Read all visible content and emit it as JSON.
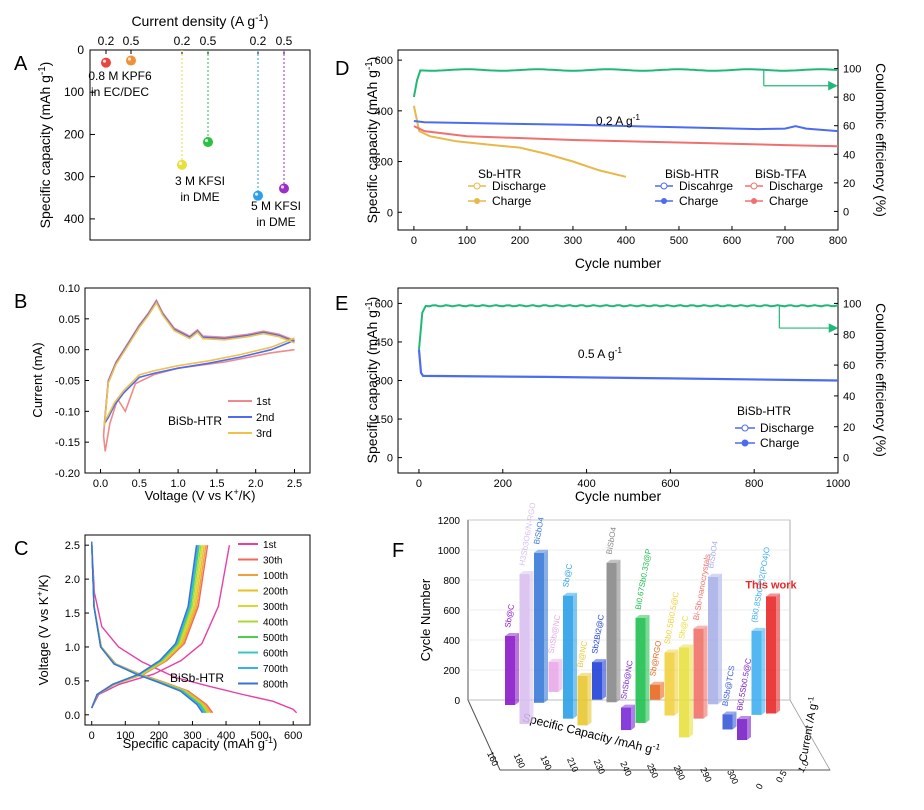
{
  "chart_data": [
    {
      "panel": "A",
      "type": "scatter",
      "top_axis_title": "Current density (A g$^{-1}$)",
      "top_axis_title_text": "Current density (A g",
      "top_axis_sup": "-1",
      "ylabel": "Specific capacity (mAh g",
      "ylabel_sup": "-1",
      "ylim": [
        0,
        450
      ],
      "yticks": [
        "0",
        "100",
        "200",
        "300",
        "400"
      ],
      "groups": [
        {
          "label_lines": [
            "0.8 M KPF6",
            "in EC/DEC"
          ],
          "points": [
            {
              "current": "0.2",
              "capacity": 30,
              "color": "#e8453c"
            },
            {
              "current": "0.5",
              "capacity": 25,
              "color": "#f0913a"
            }
          ]
        },
        {
          "label_lines": [
            "3 M KFSI",
            "in DME"
          ],
          "points": [
            {
              "current": "0.2",
              "capacity": 272,
              "color": "#e8df3c"
            },
            {
              "current": "0.5",
              "capacity": 218,
              "color": "#2bc043"
            }
          ]
        },
        {
          "label_lines": [
            "5 M KFSI",
            "in DME"
          ],
          "points": [
            {
              "current": "0.2",
              "capacity": 345,
              "color": "#2ba0e8"
            },
            {
              "current": "0.5",
              "capacity": 328,
              "color": "#9b2fc7"
            }
          ]
        }
      ]
    },
    {
      "panel": "B",
      "type": "line",
      "xlabel": "Voltage (V vs K",
      "xlabel_sup": "+",
      "xlabel_tail": "/K)",
      "ylabel": "Current (mA)",
      "xlim": [
        -0.2,
        2.7
      ],
      "ylim": [
        -0.2,
        0.1
      ],
      "xticks": [
        "0.0",
        "0.5",
        "1.0",
        "1.5",
        "2.0",
        "2.5"
      ],
      "yticks": [
        "0.10",
        "0.05",
        "0.00",
        "-0.05",
        "-0.10",
        "-0.15",
        "-0.20"
      ],
      "annotation": "BiSb-HTR",
      "legend": [
        {
          "name": "1st",
          "color": "#f08a8a"
        },
        {
          "name": "2nd",
          "color": "#4b6cf0"
        },
        {
          "name": "3rd",
          "color": "#f0c04a"
        }
      ]
    },
    {
      "panel": "C",
      "type": "line",
      "xlabel": "Specific capacity (mAh g",
      "xlabel_sup": "-1",
      "ylabel": "Voltage (V vs K",
      "ylabel_sup": "+",
      "ylabel_tail": "/K)",
      "xlim": [
        -20,
        650
      ],
      "ylim": [
        -0.15,
        2.65
      ],
      "xticks": [
        "0",
        "100",
        "200",
        "300",
        "400",
        "500",
        "600"
      ],
      "yticks": [
        "0.0",
        "0.5",
        "1.0",
        "1.5",
        "2.0",
        "2.5"
      ],
      "annotation": "BiSb-HTR",
      "legend": [
        {
          "name": "1st",
          "color": "#e83fa5"
        },
        {
          "name": "30th",
          "color": "#f0685a"
        },
        {
          "name": "100th",
          "color": "#f0a03a"
        },
        {
          "name": "200th",
          "color": "#e8c020"
        },
        {
          "name": "300th",
          "color": "#d8d830"
        },
        {
          "name": "400th",
          "color": "#a8d838"
        },
        {
          "name": "500th",
          "color": "#48d048"
        },
        {
          "name": "600th",
          "color": "#38c8b8"
        },
        {
          "name": "700th",
          "color": "#38b0e8"
        },
        {
          "name": "800th",
          "color": "#3a70d8"
        }
      ]
    },
    {
      "panel": "D",
      "type": "line",
      "xlabel": "Cycle number",
      "ylabel": "Specific capacity (mAh g",
      "ylabel_sup": "-1",
      "y2label": "Coulombic efficiency (%)",
      "xlim": [
        -30,
        800
      ],
      "ylim": [
        -70,
        640
      ],
      "y2lim": [
        -13,
        113
      ],
      "xticks": [
        "0",
        "100",
        "200",
        "300",
        "400",
        "500",
        "600",
        "700",
        "800"
      ],
      "yticks": [
        "0",
        "200",
        "400",
        "600"
      ],
      "y2ticks": [
        "0",
        "20",
        "40",
        "60",
        "80",
        "100"
      ],
      "rate_label": "0.2 A g",
      "rate_sup": "-1",
      "series_groups": [
        {
          "title": "Sb-HTR",
          "discharge": "Discharge",
          "charge": "Charge",
          "color": "#e8b84a",
          "end_cycle": 400,
          "end_capacity": 140
        },
        {
          "title": "BiSb-HTR",
          "discharge": "Discahrge",
          "charge": "Charge",
          "color": "#4b6cf0",
          "end_cycle": 800,
          "end_capacity": 320
        },
        {
          "title": "BiSb-TFA",
          "discharge": "Discharge",
          "charge": "Charge",
          "color": "#f07070",
          "end_cycle": 800,
          "end_capacity": 260
        }
      ],
      "ce_value": 99,
      "ce_color": "#20b878"
    },
    {
      "panel": "E",
      "type": "line",
      "xlabel": "Cycle number",
      "ylabel": "Specific capacity (mAh g",
      "ylabel_sup": "-1",
      "y2label": "Coulombic efficiency (%)",
      "xlim": [
        -50,
        1000
      ],
      "ylim": [
        -60,
        660
      ],
      "y2lim": [
        -10,
        110
      ],
      "xticks": [
        "0",
        "200",
        "400",
        "600",
        "800",
        "1000"
      ],
      "yticks": [
        "0",
        "150",
        "300",
        "450",
        "600"
      ],
      "y2ticks": [
        "0",
        "20",
        "40",
        "60",
        "80",
        "100"
      ],
      "rate_label": "0.5 A g",
      "rate_sup": "-1",
      "legend_title": "BiSb-HTR",
      "legend": [
        "Discharge",
        "Charge"
      ],
      "capacity_start": 318,
      "capacity_end": 300,
      "capacity_color": "#4b6cf0",
      "ce_value": 98.5,
      "ce_color": "#20b878"
    },
    {
      "panel": "F",
      "type": "bar",
      "zlabel": "Cycle Number",
      "xlabel": "Specific Capacity /mAh g",
      "xlabel_sup": "-1",
      "ylabel": "Current /A g",
      "ylabel_sup": "-1",
      "zticks": [
        "0",
        "200",
        "400",
        "600",
        "800",
        "1000",
        "1200"
      ],
      "xticks": [
        "160",
        "180",
        "190",
        "210",
        "230",
        "240",
        "250",
        "280",
        "290",
        "300"
      ],
      "yticks": [
        "0",
        "0.5",
        "1.0"
      ],
      "bars": [
        {
          "label": "Sb@C",
          "value": 460,
          "color": "#8a18c8"
        },
        {
          "label": "H3Sb3O6/N-RGO",
          "value": 1000,
          "color": "#d8c0f0"
        },
        {
          "label": "BiSbO4",
          "value": 1000,
          "color": "#3a7ad8"
        },
        {
          "label": "SnSb@NC",
          "value": 200,
          "color": "#e8a8e8"
        },
        {
          "label": "Sb@C",
          "value": 820,
          "color": "#2aa0e8"
        },
        {
          "label": "Bi@NC",
          "value": 330,
          "color": "#e8c830"
        },
        {
          "label": "Sb2Bi2@C",
          "value": 250,
          "color": "#2040d8"
        },
        {
          "label": "BiSbO4",
          "value": 930,
          "color": "#888888"
        },
        {
          "label": "SnSb@NC",
          "value": 150,
          "color": "#7a2ad8"
        },
        {
          "label": "Bi0.67Sb0.33@P",
          "value": 700,
          "color": "#20c050"
        },
        {
          "label": "Sb@RGO",
          "value": 100,
          "color": "#e86820"
        },
        {
          "label": "Sb0.5Bi0.5@C",
          "value": 420,
          "color": "#f0d040"
        },
        {
          "label": "Sb@C",
          "value": 600,
          "color": "#e8e040"
        },
        {
          "label": "Bi-Sb-nanocrystals",
          "value": 600,
          "color": "#f07068"
        },
        {
          "label": "BiSbO4",
          "value": 850,
          "color": "#a8b0e8"
        },
        {
          "label": "BiSb@TCS",
          "value": 100,
          "color": "#3a5ad8"
        },
        {
          "label": "Bi0.5Sb0.5@C",
          "value": 140,
          "color": "#7a20c8"
        },
        {
          "label": "(Bi0.8Sb0.2)2(PO4)O",
          "value": 560,
          "color": "#40b0f0"
        },
        {
          "label": "This work",
          "value": 780,
          "color": "#e82828"
        }
      ]
    }
  ]
}
